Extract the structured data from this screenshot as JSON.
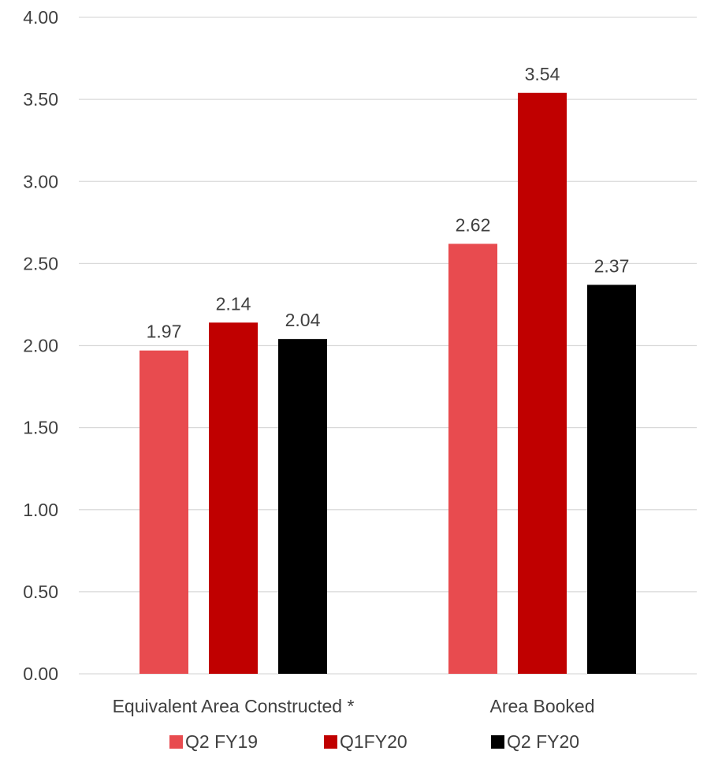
{
  "chart_data": {
    "type": "bar",
    "categories": [
      "Equivalent Area Constructed *",
      "Area Booked"
    ],
    "series": [
      {
        "name": "Q2 FY19",
        "values": [
          1.97,
          2.62
        ],
        "color": "#e84b4f"
      },
      {
        "name": "Q1FY20",
        "values": [
          2.14,
          3.54
        ],
        "color": "#c00000"
      },
      {
        "name": "Q2 FY20",
        "values": [
          2.04,
          2.37
        ],
        "color": "#000000"
      }
    ],
    "data_labels": [
      [
        "1.97",
        "2.62"
      ],
      [
        "2.14",
        "3.54"
      ],
      [
        "2.04",
        "2.37"
      ]
    ],
    "y_ticks": [
      "0.00",
      "0.50",
      "1.00",
      "1.50",
      "2.00",
      "2.50",
      "3.00",
      "3.50",
      "4.00"
    ],
    "ylim": [
      0,
      4
    ],
    "grid": true,
    "legend_position": "bottom",
    "title": "",
    "xlabel": "",
    "ylabel": ""
  }
}
